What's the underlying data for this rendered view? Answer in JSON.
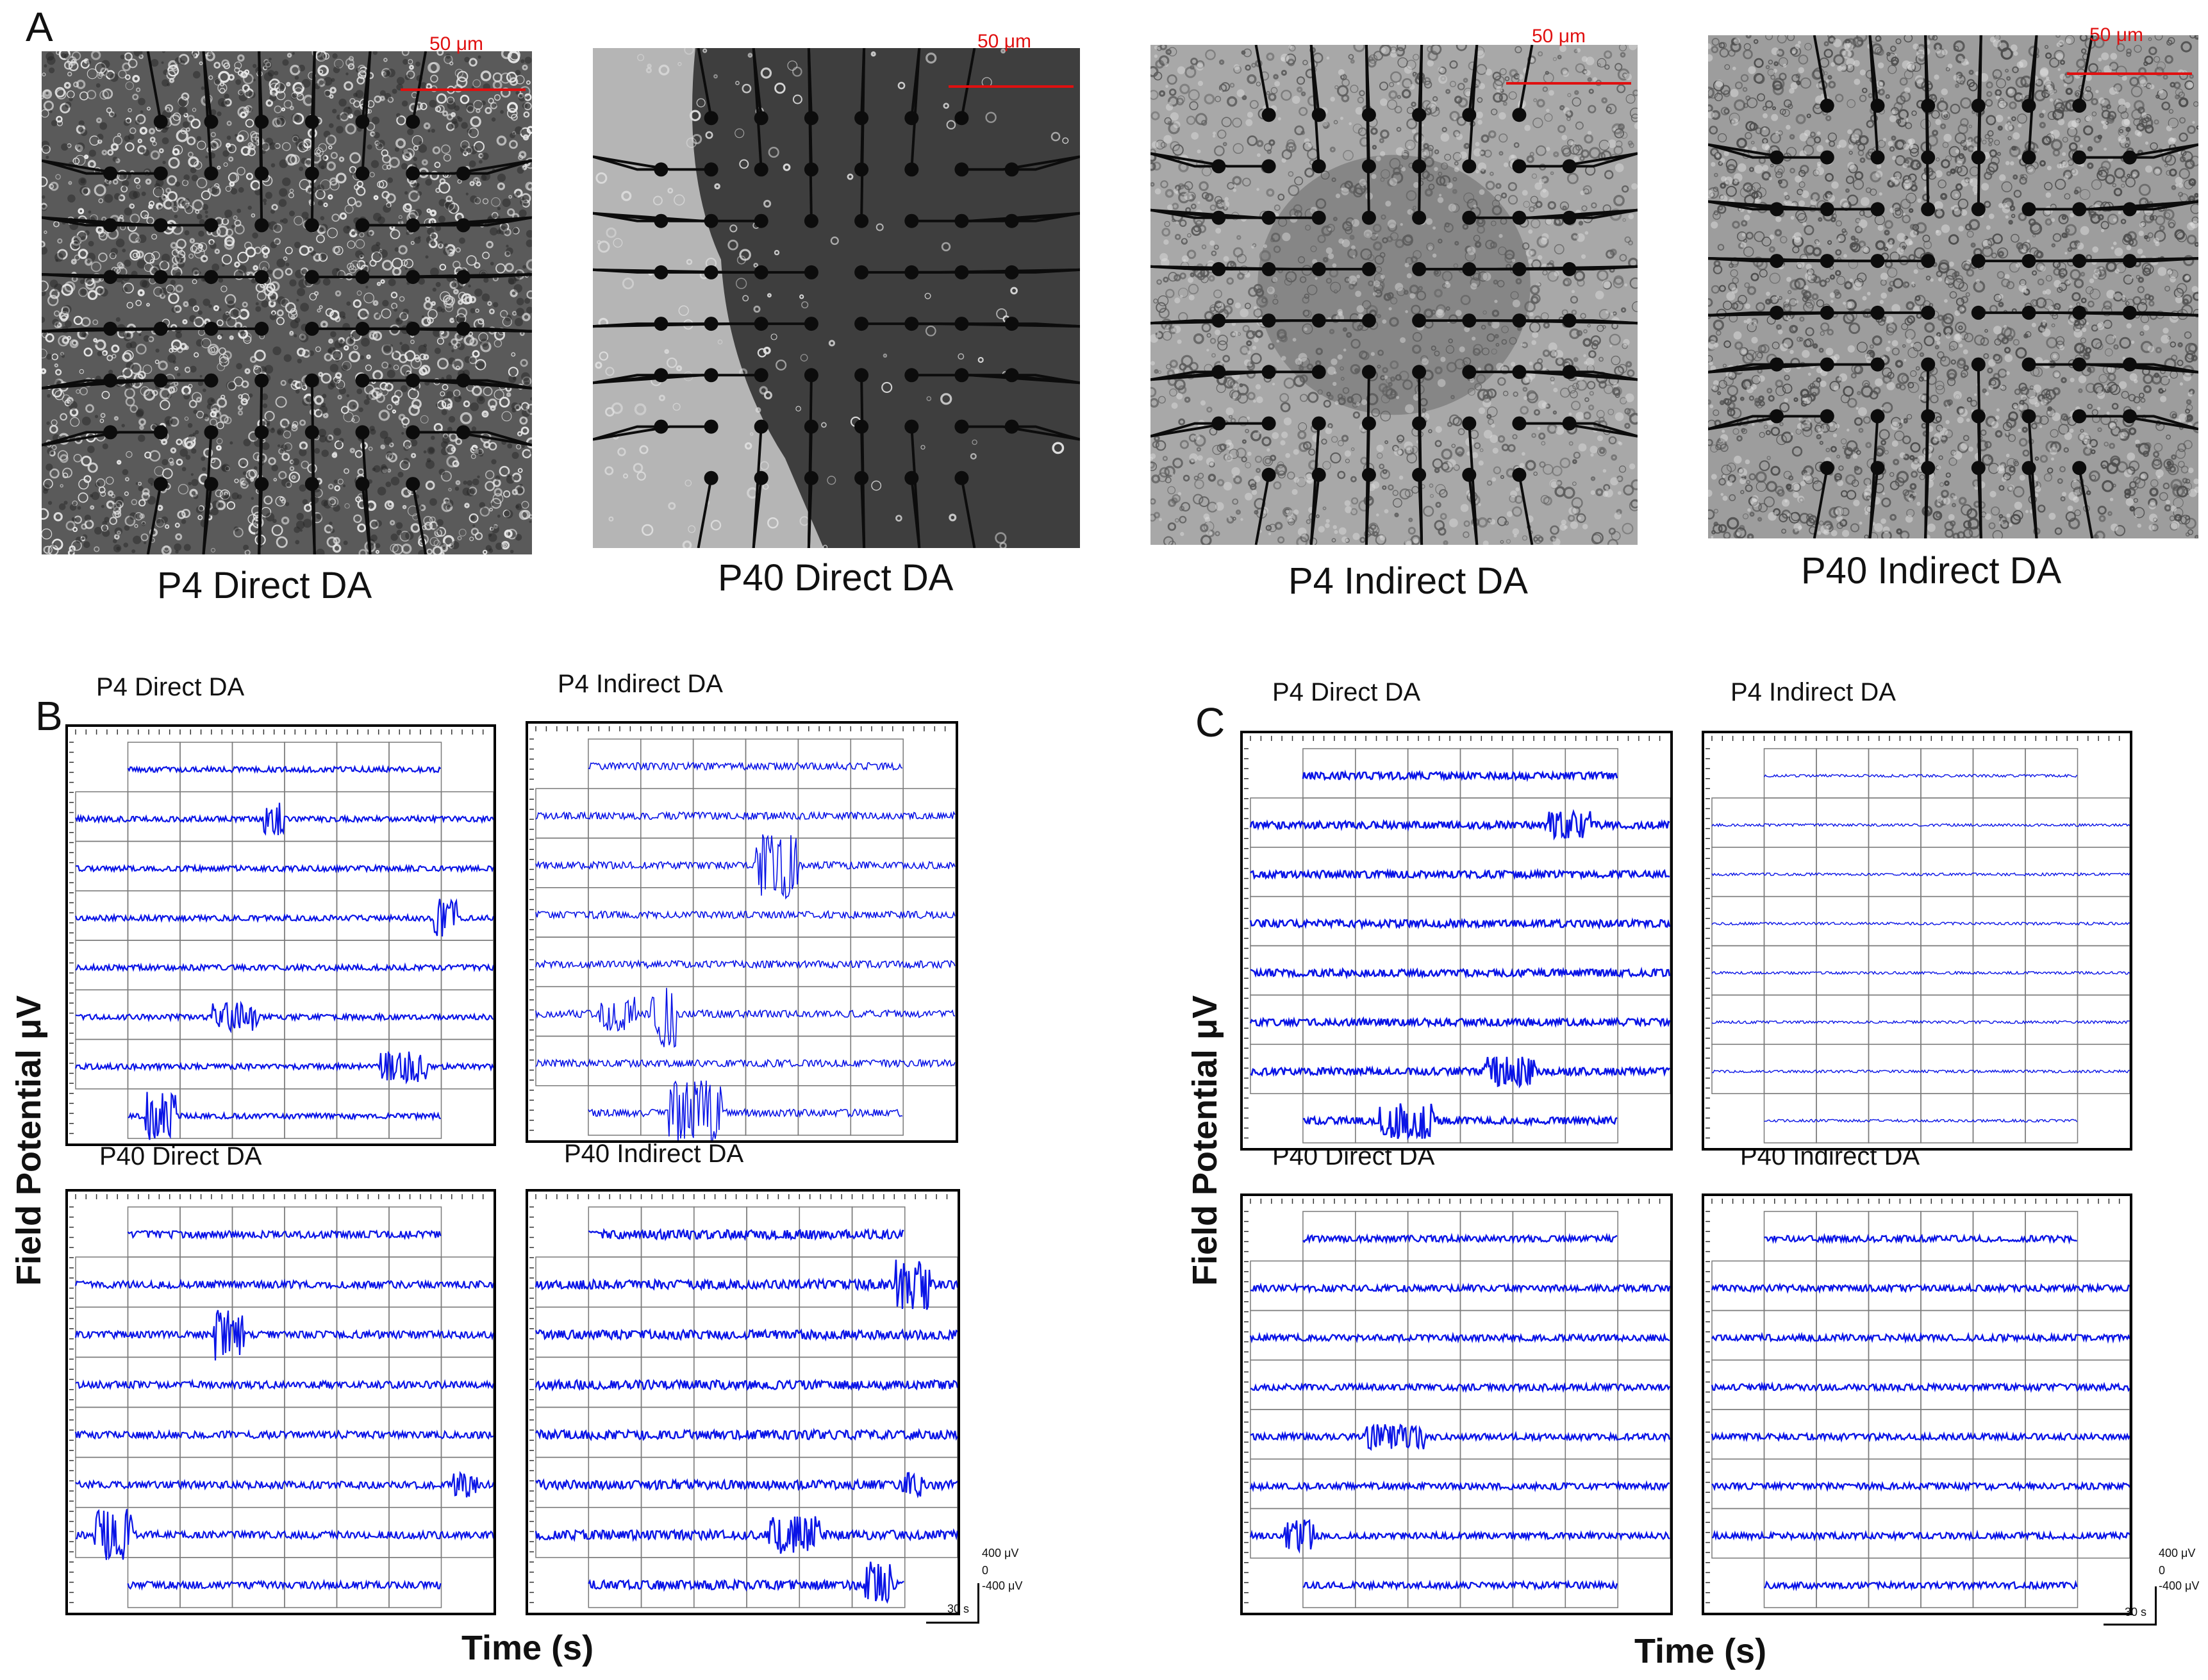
{
  "panel_labels": {
    "a": "A",
    "b": "B",
    "c": "C"
  },
  "micrographs": [
    {
      "caption": "P4 Direct DA",
      "scale_label": "50 μm",
      "tone": "dark-dense"
    },
    {
      "caption": "P40 Direct DA",
      "scale_label": "50 μm",
      "tone": "dark-sparse"
    },
    {
      "caption": "P4 Indirect DA",
      "scale_label": "50 μm",
      "tone": "light-medium"
    },
    {
      "caption": "P40 Indirect DA",
      "scale_label": "50 μm",
      "tone": "light-dense"
    }
  ],
  "panel_b": {
    "recordings": [
      {
        "title": "P4 Direct DA"
      },
      {
        "title": "P4 Indirect DA"
      },
      {
        "title": "P40 Direct DA"
      },
      {
        "title": "P40 Indirect DA"
      }
    ],
    "y_axis_title": "Field Potential μV",
    "x_axis_title": "Time (s)",
    "scale_bar": {
      "top": "400 μV",
      "mid": "0",
      "bottom": "-400 μV",
      "time": "30 s"
    }
  },
  "panel_c": {
    "recordings": [
      {
        "title": "P4 Direct DA"
      },
      {
        "title": "P4 Indirect DA"
      },
      {
        "title": "P40 Direct DA"
      },
      {
        "title": "P40 Indirect DA"
      }
    ],
    "y_axis_title": "Field Potential μV",
    "x_axis_title": "Time (s)",
    "scale_bar": {
      "top": "400 μV",
      "mid": "0",
      "bottom": "-400 μV",
      "time": "30 s"
    }
  },
  "colors": {
    "trace": "#0a14e6",
    "scale": "#e01010",
    "grid": "#000000"
  }
}
